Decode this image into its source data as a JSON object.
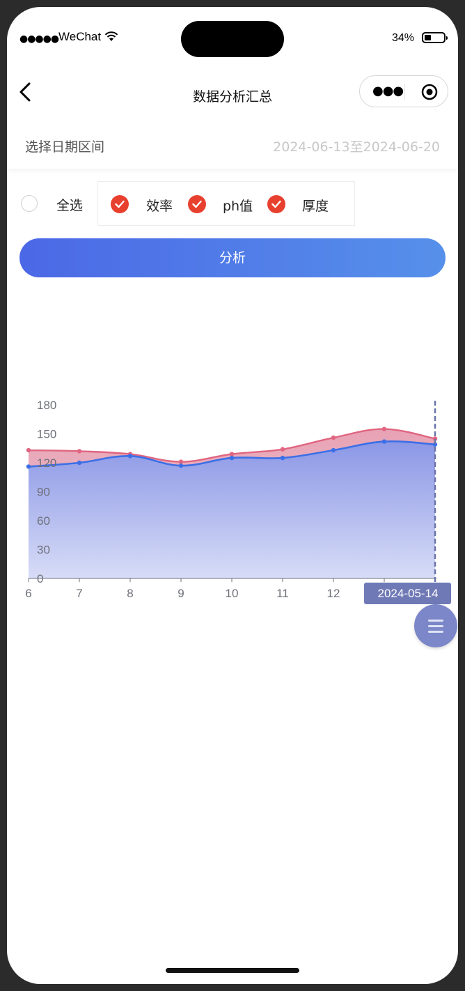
{
  "status_bar": {
    "signal": "●●●●●",
    "carrier": "WeChat",
    "battery_percent": "34%",
    "battery_level": 0.34
  },
  "nav": {
    "title": "数据分析汇总",
    "more_icon": "ellipsis-icon",
    "close_icon": "target-icon"
  },
  "date_range": {
    "label": "选择日期区间",
    "value": "2024-06-13至2024-06-20"
  },
  "filters": {
    "select_all_label": "全选",
    "select_all_checked": false,
    "options": [
      {
        "label": "效率",
        "checked": true
      },
      {
        "label": "ph值",
        "checked": true
      },
      {
        "label": "厚度",
        "checked": true
      }
    ],
    "check_color": "#e8402f"
  },
  "analyze_button": {
    "label": "分析"
  },
  "chart_data": {
    "type": "area",
    "x": [
      "6",
      "7",
      "8",
      "9",
      "10",
      "11",
      "12",
      "13",
      "14"
    ],
    "y_ticks": [
      "0",
      "30",
      "60",
      "90",
      "120",
      "150",
      "180"
    ],
    "ylim": [
      0,
      180
    ],
    "series": [
      {
        "values": [
          116,
          120,
          127,
          117,
          125,
          125,
          133,
          142,
          139
        ],
        "color": "#3c6fe6"
      },
      {
        "values": [
          133,
          132,
          129,
          121,
          129,
          134,
          146,
          155,
          145
        ],
        "color": "#e06580"
      }
    ],
    "tooltip_label": "2024-05-14",
    "pointer_index": 8,
    "grid": false
  },
  "fab": {
    "icon": "menu-icon"
  }
}
